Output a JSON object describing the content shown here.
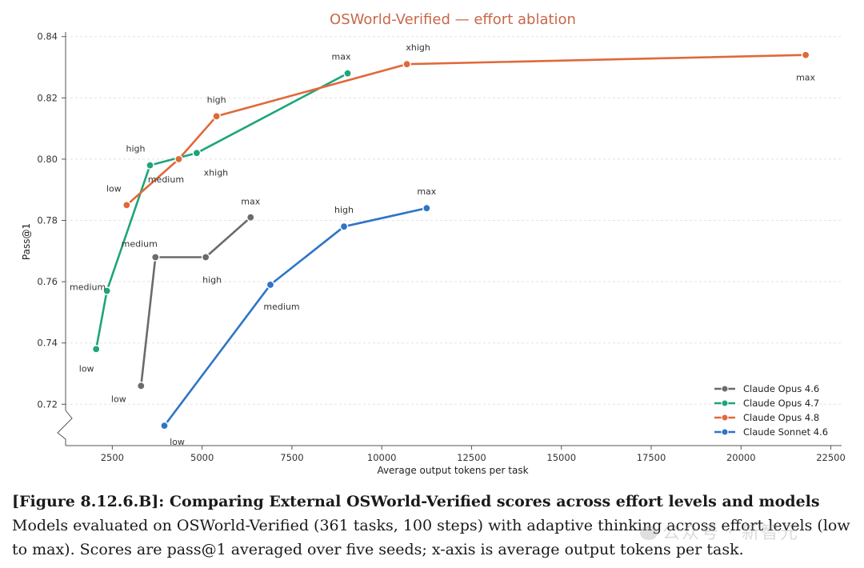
{
  "chart_data": {
    "type": "line",
    "title": "OSWorld-Verified — effort ablation",
    "xlabel": "Average output tokens per task",
    "ylabel": "Pass@1",
    "xlim": [
      1200,
      22800
    ],
    "ylim": [
      0.7065,
      0.8415
    ],
    "xticks": [
      2500,
      5000,
      7500,
      10000,
      12500,
      15000,
      17500,
      20000,
      22500
    ],
    "yticks": [
      0.72,
      0.74,
      0.76,
      0.78,
      0.8,
      0.82,
      0.84
    ],
    "y_axis_break": true,
    "grid": "horizontal",
    "legend_position": "bottom-right",
    "series": [
      {
        "name": "Claude Opus 4.6",
        "color": "#6b6b6b",
        "points": [
          {
            "x": 3300,
            "y": 0.726,
            "label": "low"
          },
          {
            "x": 3700,
            "y": 0.768,
            "label": "medium"
          },
          {
            "x": 5100,
            "y": 0.768,
            "label": "high"
          },
          {
            "x": 6350,
            "y": 0.781,
            "label": "max"
          }
        ]
      },
      {
        "name": "Claude Opus 4.7",
        "color": "#1fa57a",
        "points": [
          {
            "x": 2050,
            "y": 0.738,
            "label": "low"
          },
          {
            "x": 2350,
            "y": 0.757,
            "label": "medium"
          },
          {
            "x": 3550,
            "y": 0.798,
            "label": "high"
          },
          {
            "x": 4850,
            "y": 0.802,
            "label": "xhigh"
          },
          {
            "x": 9050,
            "y": 0.828,
            "label": "max"
          }
        ]
      },
      {
        "name": "Claude Opus 4.8",
        "color": "#e0693a",
        "points": [
          {
            "x": 2900,
            "y": 0.785,
            "label": "low"
          },
          {
            "x": 4350,
            "y": 0.8,
            "label": "medium"
          },
          {
            "x": 5400,
            "y": 0.814,
            "label": "high"
          },
          {
            "x": 10700,
            "y": 0.831,
            "label": "xhigh"
          },
          {
            "x": 21800,
            "y": 0.834,
            "label": "max"
          }
        ]
      },
      {
        "name": "Claude Sonnet 4.6",
        "color": "#2f74c8",
        "points": [
          {
            "x": 3950,
            "y": 0.713,
            "label": "low"
          },
          {
            "x": 6900,
            "y": 0.759,
            "label": "medium"
          },
          {
            "x": 8950,
            "y": 0.778,
            "label": "high"
          },
          {
            "x": 11250,
            "y": 0.784,
            "label": "max"
          }
        ]
      }
    ]
  },
  "caption": {
    "bold": "[Figure 8.12.6.B]: Comparing External OSWorld-Verified scores across effort levels and models",
    "text": " Models evaluated on OSWorld-Verified (361 tasks, 100 steps) with adaptive thinking across effort levels (low to max). Scores are pass@1 averaged over five seeds; x-axis is average output tokens per task."
  },
  "watermark": "公众号 · 新智元"
}
